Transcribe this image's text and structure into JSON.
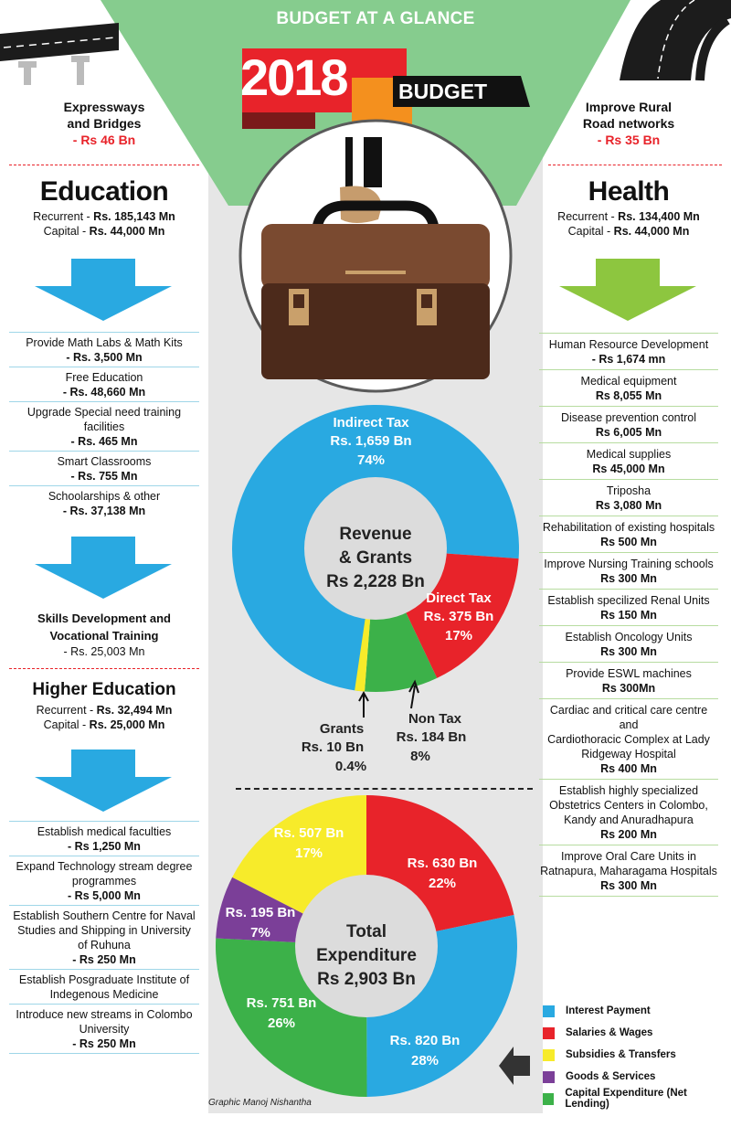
{
  "header": {
    "title": "BUDGET AT A GLANCE",
    "year": "2018",
    "budget_word": "BUDGET"
  },
  "roads": {
    "left": {
      "line1": "Expressways",
      "line2": "and Bridges",
      "amount": "- Rs 46 Bn"
    },
    "right": {
      "line1": "Improve Rural",
      "line2": "Road networks",
      "amount": "- Rs 35 Bn"
    }
  },
  "education": {
    "title": "Education",
    "recurrent_label": "Recurrent - ",
    "recurrent": "Rs. 185,143 Mn",
    "capital_label": "Capital - ",
    "capital": "Rs. 44,000 Mn",
    "items": [
      {
        "label": "Provide Math Labs & Math Kits",
        "amount": "- Rs. 3,500 Mn"
      },
      {
        "label": "Free Education",
        "amount": "- Rs. 48,660 Mn"
      },
      {
        "label": "Upgrade Special need training facilities",
        "amount": "- Rs. 465 Mn"
      },
      {
        "label": "Smart Classrooms",
        "amount": "- Rs. 755 Mn"
      },
      {
        "label": "Schoolarships & other",
        "amount": "- Rs. 37,138 Mn"
      }
    ],
    "skills": {
      "line1": "Skills Development and",
      "line2": "Vocational Training",
      "amount": "- Rs. 25,003 Mn"
    }
  },
  "higher_education": {
    "title": "Higher Education",
    "recurrent_label": "Recurrent - ",
    "recurrent": "Rs. 32,494 Mn",
    "capital_label": "Capital - ",
    "capital": "Rs. 25,000 Mn",
    "items": [
      {
        "lines": [
          "Establish medical faculties"
        ],
        "amount": "- Rs 1,250 Mn"
      },
      {
        "lines": [
          "Expand Technology stream degree",
          "programmes"
        ],
        "amount": "- Rs 5,000 Mn"
      },
      {
        "lines": [
          "Establish Southern Centre for Naval",
          "Studies and Shipping in University",
          "of Ruhuna"
        ],
        "amount": "- Rs 250 Mn"
      },
      {
        "lines": [
          "Establish Posgraduate Institute of",
          "Indegenous Medicine"
        ],
        "amount": ""
      },
      {
        "lines": [
          "Introduce new streams in Colombo",
          "University"
        ],
        "amount": "- Rs 250 Mn"
      }
    ]
  },
  "health": {
    "title": "Health",
    "recurrent_label": "Recurrent - ",
    "recurrent": "Rs. 134,400 Mn",
    "capital_label": "Capital - ",
    "capital": "Rs. 44,000 Mn",
    "items": [
      {
        "lines": [
          "Human Resource Development"
        ],
        "amount": "- Rs 1,674 mn"
      },
      {
        "lines": [
          "Medical equipment"
        ],
        "amount": "Rs 8,055 Mn"
      },
      {
        "lines": [
          "Disease prevention control"
        ],
        "amount": "Rs 6,005 Mn"
      },
      {
        "lines": [
          "Medical supplies"
        ],
        "amount": "Rs 45,000 Mn"
      },
      {
        "lines": [
          "Triposha"
        ],
        "amount": "Rs 3,080 Mn"
      },
      {
        "lines": [
          "Rehabilitation of existing hospitals"
        ],
        "amount": "Rs 500 Mn"
      },
      {
        "lines": [
          "Improve Nursing Training schools"
        ],
        "amount": "Rs 300 Mn"
      },
      {
        "lines": [
          "Establish specilized Renal Units"
        ],
        "amount": "Rs 150 Mn"
      },
      {
        "lines": [
          "Establish Oncology Units"
        ],
        "amount": "Rs 300 Mn"
      },
      {
        "lines": [
          "Provide ESWL machines"
        ],
        "amount": "Rs 300Mn"
      },
      {
        "lines": [
          "Cardiac and critical care centre and",
          "Cardiothoracic Complex at Lady",
          "Ridgeway Hospital"
        ],
        "amount": "Rs 400 Mn"
      },
      {
        "lines": [
          "Establish highly specialized",
          "Obstetrics Centers in Colombo,",
          "Kandy and Anuradhapura"
        ],
        "amount": "Rs 200 Mn"
      },
      {
        "lines": [
          "Improve Oral Care Units in",
          "Ratnapura, Maharagama Hospitals"
        ],
        "amount": "Rs 300 Mn"
      }
    ]
  },
  "legend": [
    {
      "label": "Interest Payment",
      "color": "#29a9e1"
    },
    {
      "label": "Salaries & Wages",
      "color": "#e8232a"
    },
    {
      "label": "Subsidies & Transfers",
      "color": "#f7eb2a"
    },
    {
      "label": "Goods & Services",
      "color": "#7b3f98"
    },
    {
      "label": "Capital Expenditure (Net Lending)",
      "color": "#3cb149"
    }
  ],
  "credit": "Graphic Manoj Nishantha",
  "colors": {
    "green": "#86cc8e",
    "blue": "#29a9e1",
    "red": "#e8232a",
    "yellow": "#f7eb2a",
    "purple": "#7b3f98",
    "dkgreen": "#3cb149",
    "orange": "#f4901e"
  },
  "chart_data": [
    {
      "type": "pie",
      "center_label": [
        "Revenue",
        "& Grants",
        "Rs 2,228 Bn"
      ],
      "slices": [
        {
          "name": "Indirect Tax",
          "value_text": "Rs. 1,659 Bn",
          "pct_text": "74%",
          "value": 1659,
          "color": "#29a9e1"
        },
        {
          "name": "Direct Tax",
          "value_text": "Rs. 375 Bn",
          "pct_text": "17%",
          "value": 375,
          "color": "#e8232a"
        },
        {
          "name": "Non Tax",
          "value_text": "Rs. 184 Bn",
          "pct_text": "8%",
          "value": 184,
          "color": "#3cb149"
        },
        {
          "name": "Grants",
          "value_text": "Rs. 10 Bn",
          "pct_text": "0.4%",
          "value": 10,
          "color": "#f7eb2a"
        }
      ]
    },
    {
      "type": "pie",
      "center_label": [
        "Total",
        "Expenditure",
        "Rs 2,903 Bn"
      ],
      "slices": [
        {
          "name": "Salaries & Wages",
          "value_text": "Rs. 630 Bn",
          "pct_text": "22%",
          "value": 630,
          "color": "#e8232a"
        },
        {
          "name": "Interest Payment",
          "value_text": "Rs. 820 Bn",
          "pct_text": "28%",
          "value": 820,
          "color": "#29a9e1"
        },
        {
          "name": "Capital Expenditure (Net Lending)",
          "value_text": "Rs. 751 Bn",
          "pct_text": "26%",
          "value": 751,
          "color": "#3cb149"
        },
        {
          "name": "Goods & Services",
          "value_text": "Rs. 195 Bn",
          "pct_text": "7%",
          "value": 195,
          "color": "#7b3f98"
        },
        {
          "name": "Subsidies & Transfers",
          "value_text": "Rs. 507 Bn",
          "pct_text": "17%",
          "value": 507,
          "color": "#f7eb2a"
        }
      ]
    }
  ]
}
